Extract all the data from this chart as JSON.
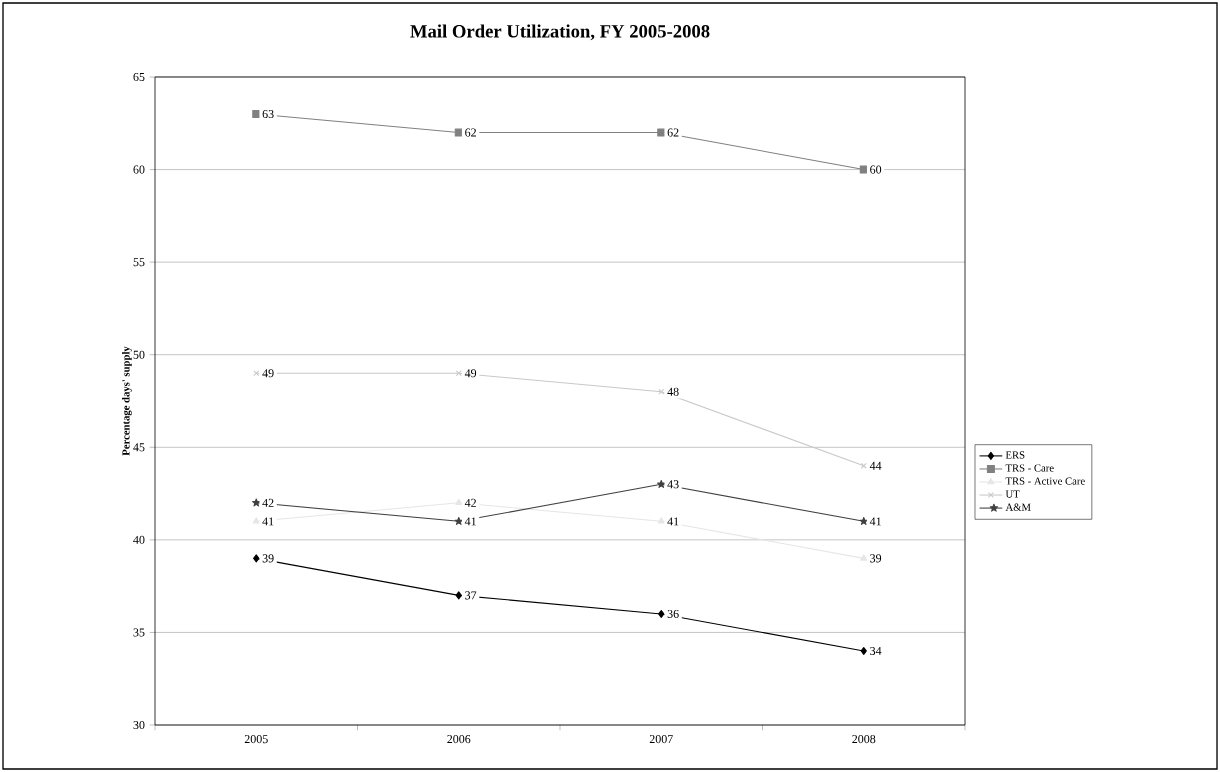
{
  "chart_data": {
    "type": "line",
    "title": "Mail Order Utilization, FY 2005-2008",
    "ylabel": "Percentage days' supply",
    "categories": [
      "2005",
      "2006",
      "2007",
      "2008"
    ],
    "series": [
      {
        "name": "ERS",
        "color": "#000000",
        "marker": "diamond",
        "values": [
          39,
          37,
          36,
          34
        ]
      },
      {
        "name": "TRS - Care",
        "color": "#808080",
        "marker": "square",
        "values": [
          63,
          62,
          62,
          60
        ]
      },
      {
        "name": "TRS - Active Care",
        "color": "#e6e6e6",
        "marker": "triangle",
        "values": [
          41,
          42,
          41,
          39
        ]
      },
      {
        "name": "UT",
        "color": "#c8c8c8",
        "marker": "cross",
        "values": [
          49,
          49,
          48,
          44
        ]
      },
      {
        "name": "A&M",
        "color": "#404040",
        "marker": "star",
        "values": [
          42,
          41,
          43,
          41
        ]
      }
    ],
    "ylim": [
      30,
      65
    ],
    "yticks": [
      30,
      35,
      40,
      45,
      50,
      55,
      60,
      65
    ],
    "grid": "y",
    "legend": "right",
    "data_labels": true
  }
}
